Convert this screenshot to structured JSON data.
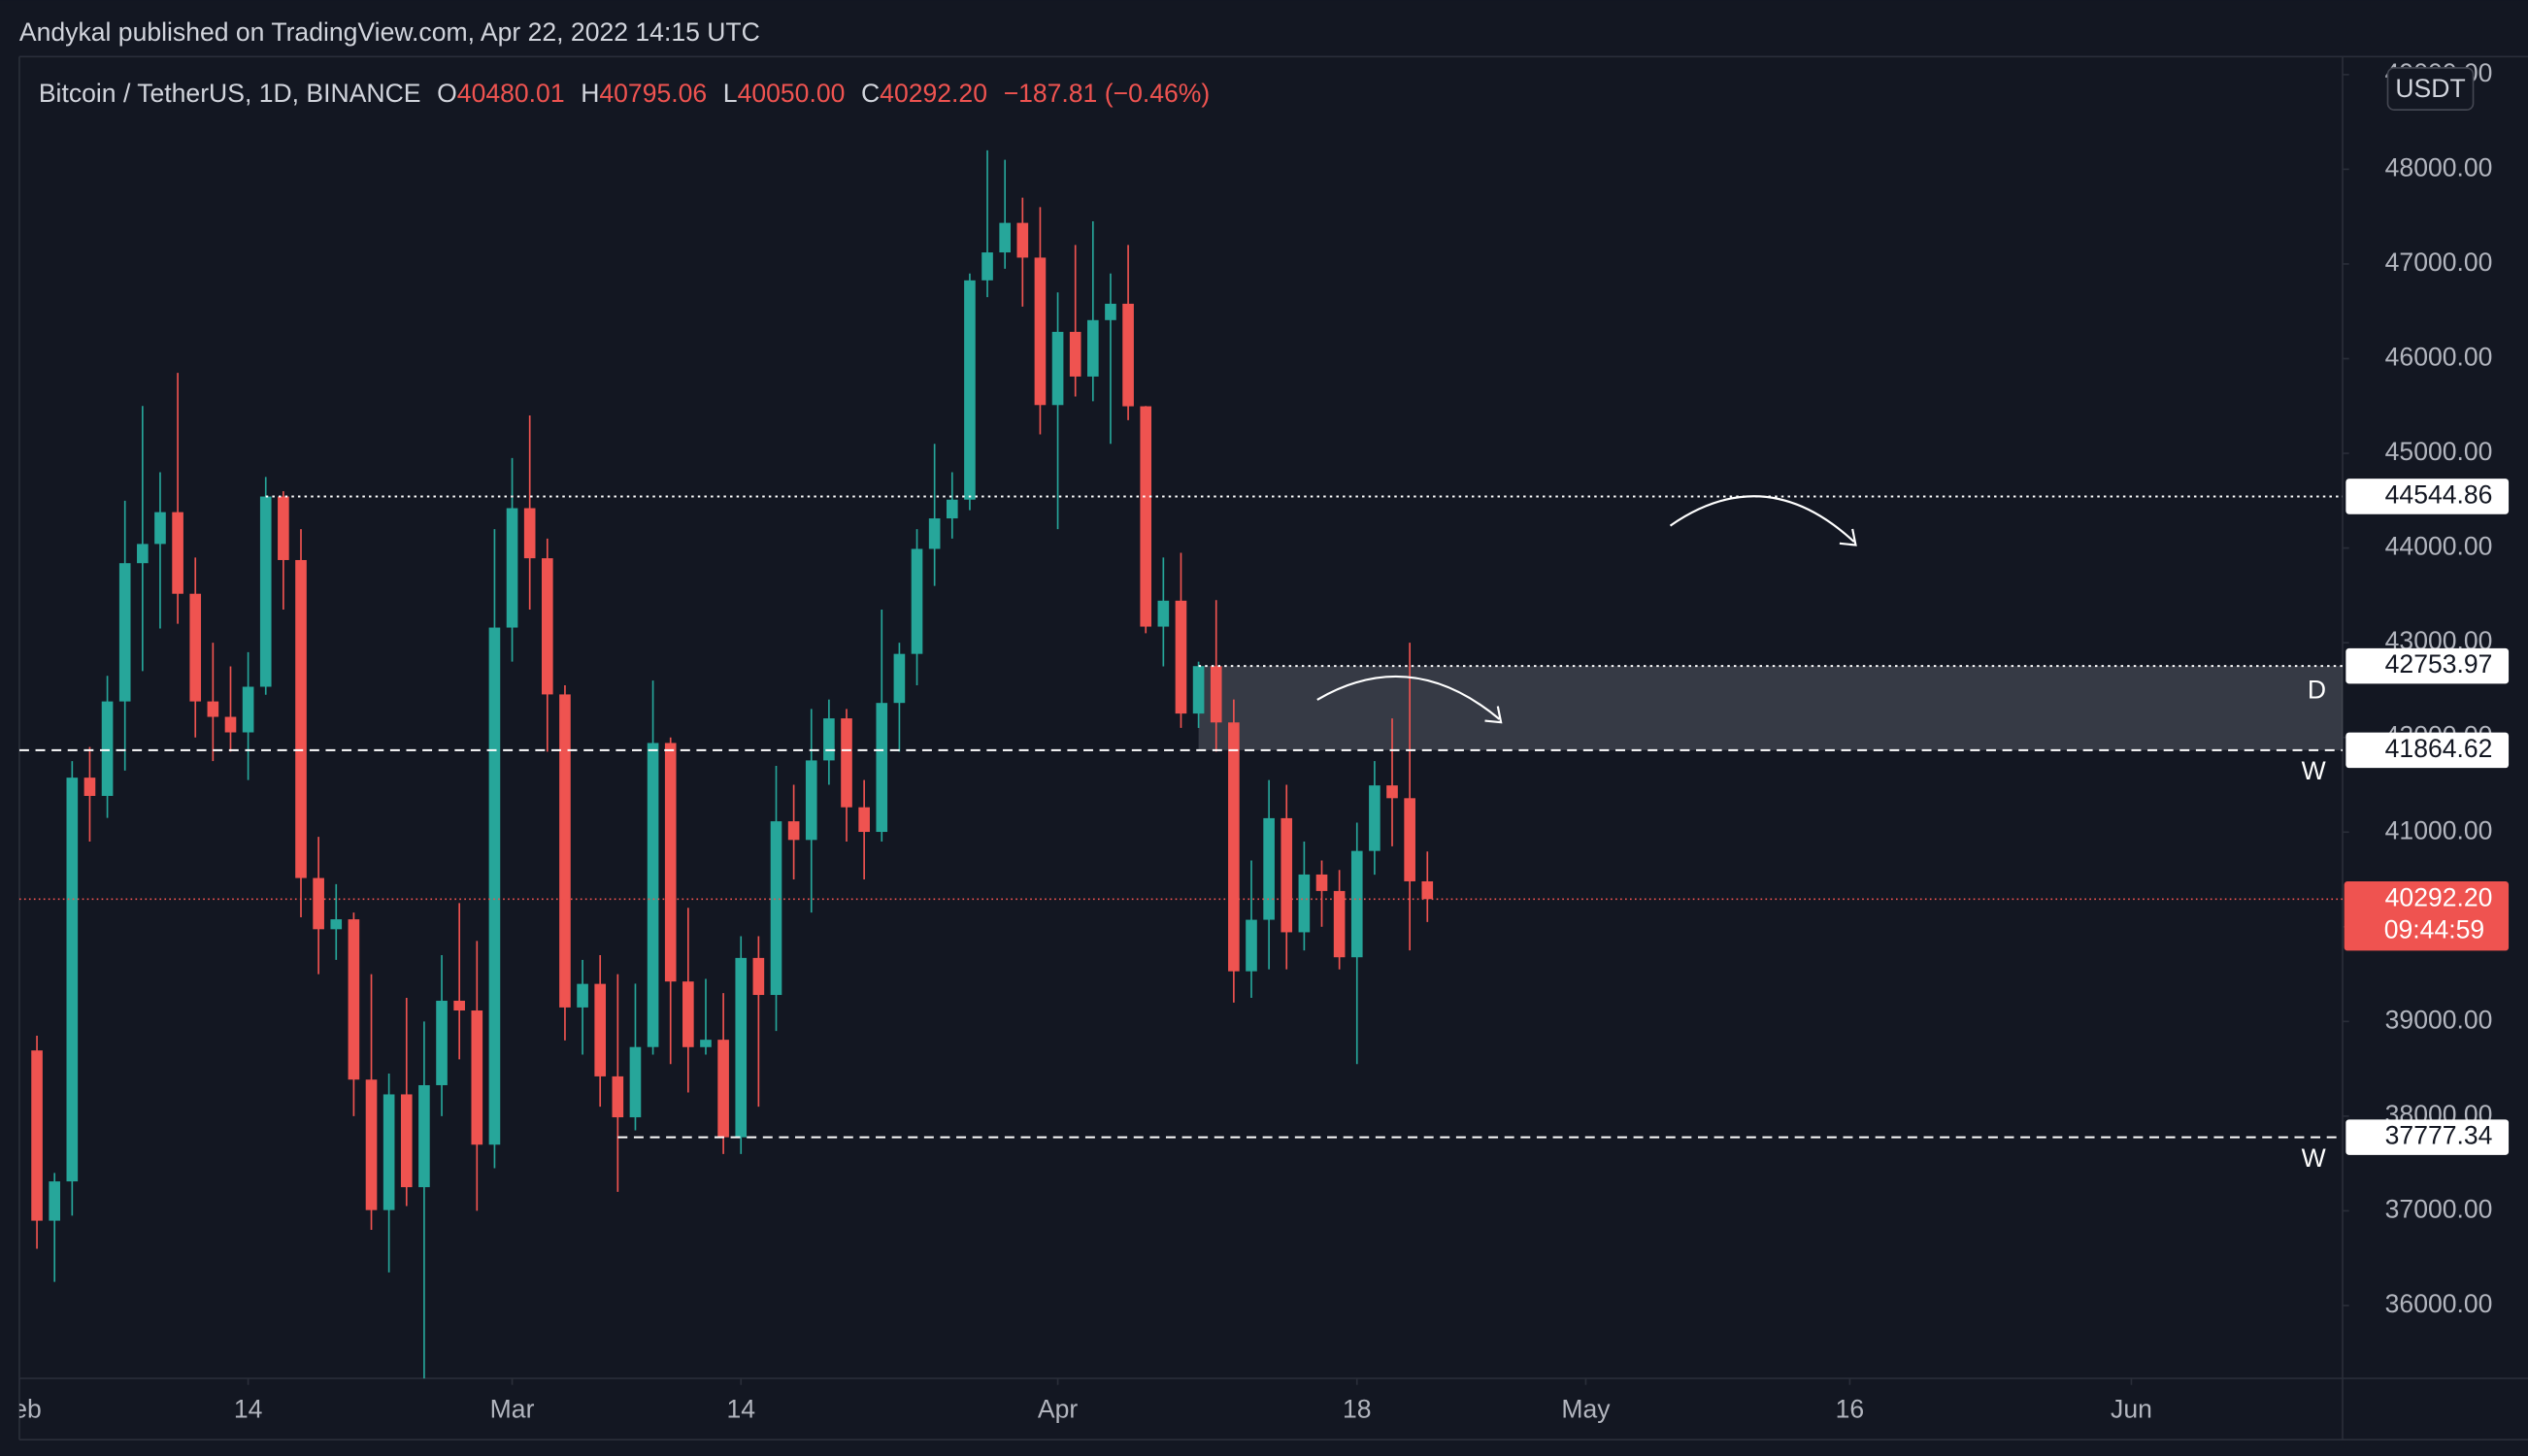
{
  "chart_data": {
    "type": "candlestick",
    "title": "Andykal published on TradingView.com, Apr 22, 2022 14:15 UTC",
    "symbol": "Bitcoin / TetherUS, 1D, BINANCE",
    "legend": [
      {
        "key": "O",
        "value": "40480.01"
      },
      {
        "key": "H",
        "value": "40795.06"
      },
      {
        "key": "L",
        "value": "40050.00"
      },
      {
        "key": "C",
        "value": "40292.20"
      }
    ],
    "change": "−187.81 (−0.46%)",
    "currency": "USDT",
    "up_color": "#26a69a",
    "down_color": "#ef5350",
    "x": [
      "2022-02-02",
      "2022-02-03",
      "2022-02-04",
      "2022-02-05",
      "2022-02-06",
      "2022-02-07",
      "2022-02-08",
      "2022-02-09",
      "2022-02-10",
      "2022-02-11",
      "2022-02-12",
      "2022-02-13",
      "2022-02-14",
      "2022-02-15",
      "2022-02-16",
      "2022-02-17",
      "2022-02-18",
      "2022-02-19",
      "2022-02-20",
      "2022-02-21",
      "2022-02-22",
      "2022-02-23",
      "2022-02-24",
      "2022-02-25",
      "2022-02-26",
      "2022-02-27",
      "2022-02-28",
      "2022-03-01",
      "2022-03-02",
      "2022-03-03",
      "2022-03-04",
      "2022-03-05",
      "2022-03-06",
      "2022-03-07",
      "2022-03-08",
      "2022-03-09",
      "2022-03-10",
      "2022-03-11",
      "2022-03-12",
      "2022-03-13",
      "2022-03-14",
      "2022-03-15",
      "2022-03-16",
      "2022-03-17",
      "2022-03-18",
      "2022-03-19",
      "2022-03-20",
      "2022-03-21",
      "2022-03-22",
      "2022-03-23",
      "2022-03-24",
      "2022-03-25",
      "2022-03-26",
      "2022-03-27",
      "2022-03-28",
      "2022-03-29",
      "2022-03-30",
      "2022-03-31",
      "2022-04-01",
      "2022-04-02",
      "2022-04-03",
      "2022-04-04",
      "2022-04-05",
      "2022-04-06",
      "2022-04-07",
      "2022-04-08",
      "2022-04-09",
      "2022-04-10",
      "2022-04-11",
      "2022-04-12",
      "2022-04-13",
      "2022-04-14",
      "2022-04-15",
      "2022-04-16",
      "2022-04-17",
      "2022-04-18",
      "2022-04-19",
      "2022-04-20",
      "2022-04-21",
      "2022-04-22"
    ],
    "open": [
      38694,
      36896,
      37311,
      41575,
      41382,
      42380,
      43840,
      44043,
      44379,
      43517,
      42380,
      42217,
      42053,
      42535,
      44544,
      43873,
      40515,
      39974,
      40079,
      38386,
      37008,
      38230,
      37250,
      38327,
      39219,
      39116,
      37699,
      43160,
      44421,
      43892,
      42454,
      39148,
      39397,
      38420,
      37988,
      38730,
      41941,
      39422,
      38729,
      38807,
      37777,
      39671,
      39280,
      41114,
      40917,
      41757,
      42201,
      41262,
      41002,
      42364,
      42882,
      43991,
      44313,
      44511,
      46827,
      47122,
      47434,
      47067,
      45510,
      46283,
      45811,
      46407,
      46580,
      45497,
      43170,
      43444,
      42252,
      42753,
      42158,
      39530,
      40074,
      41147,
      39942,
      40552,
      40378,
      39678,
      40801,
      41493,
      41358,
      40480
    ],
    "high": [
      38850,
      37400,
      41750,
      41900,
      42650,
      44500,
      45500,
      44800,
      45850,
      43900,
      43000,
      42750,
      42900,
      44750,
      44600,
      44200,
      40950,
      40450,
      40150,
      39500,
      38450,
      39250,
      39000,
      39700,
      40250,
      39850,
      44200,
      44950,
      45400,
      44100,
      42550,
      39650,
      39700,
      39500,
      39400,
      42600,
      42000,
      40200,
      39450,
      39300,
      39900,
      39900,
      41700,
      41500,
      42300,
      42400,
      42300,
      41550,
      43350,
      43000,
      44200,
      45100,
      44800,
      46900,
      48200,
      48100,
      47700,
      47600,
      46700,
      47200,
      47450,
      46900,
      47200,
      45500,
      43900,
      43950,
      42800,
      43450,
      42400,
      40700,
      41550,
      41500,
      40900,
      40700,
      40600,
      41100,
      41750,
      42200,
      43000,
      40795.06
    ],
    "low": [
      36600,
      36250,
      36950,
      40900,
      41150,
      41650,
      42700,
      43150,
      43200,
      42000,
      41750,
      41850,
      41550,
      42450,
      43350,
      40100,
      39500,
      39650,
      38000,
      36800,
      36350,
      37050,
      34400,
      38000,
      38600,
      37000,
      37450,
      42800,
      43350,
      41850,
      38800,
      38650,
      38100,
      37200,
      37850,
      38650,
      38550,
      38250,
      38650,
      37600,
      37600,
      38100,
      38900,
      40500,
      40150,
      41500,
      40900,
      40500,
      40900,
      41850,
      42550,
      43600,
      44100,
      44400,
      46650,
      46950,
      46550,
      45200,
      44200,
      45600,
      45550,
      45100,
      45350,
      43100,
      42750,
      42100,
      42100,
      41850,
      39200,
      39250,
      39550,
      39550,
      39750,
      40000,
      39550,
      38550,
      40550,
      40850,
      39750,
      40050
    ],
    "close": [
      36896,
      37311,
      41575,
      41382,
      42380,
      43840,
      44043,
      44379,
      43517,
      42380,
      42217,
      42053,
      42535,
      44544,
      43873,
      40515,
      39974,
      40079,
      38386,
      37008,
      38230,
      37250,
      38327,
      39219,
      39116,
      37699,
      43160,
      44421,
      43892,
      42454,
      39148,
      39397,
      38420,
      37988,
      38730,
      41941,
      39422,
      38729,
      38807,
      37777,
      39671,
      39280,
      41114,
      40917,
      41757,
      42201,
      41262,
      41002,
      42364,
      42882,
      43991,
      44313,
      44511,
      46827,
      47122,
      47434,
      47067,
      45510,
      46283,
      45811,
      46407,
      46580,
      45497,
      43170,
      43444,
      42252,
      42753,
      42158,
      39530,
      40074,
      41147,
      39942,
      40552,
      40378,
      39678,
      40801,
      41493,
      41358,
      40480,
      40292.2
    ],
    "xlim": [
      "2022-02-01",
      "2022-06-13"
    ],
    "xticks": [
      {
        "value": "2022-02-01",
        "label": "Feb"
      },
      {
        "value": "2022-02-14",
        "label": "14"
      },
      {
        "value": "2022-03-01",
        "label": "Mar"
      },
      {
        "value": "2022-03-14",
        "label": "14"
      },
      {
        "value": "2022-04-01",
        "label": "Apr"
      },
      {
        "value": "2022-04-18",
        "label": "18"
      },
      {
        "value": "2022-05-01",
        "label": "May"
      },
      {
        "value": "2022-05-16",
        "label": "16"
      },
      {
        "value": "2022-06-01",
        "label": "Jun"
      }
    ],
    "ylim": [
      35230,
      49190
    ],
    "yticks": [
      {
        "value": 36000,
        "label": "36000.00"
      },
      {
        "value": 37000,
        "label": "37000.00"
      },
      {
        "value": 38000,
        "label": "38000.00"
      },
      {
        "value": 39000,
        "label": "39000.00"
      },
      {
        "value": 40000,
        "label": "40000.00"
      },
      {
        "value": 41000,
        "label": "41000.00"
      },
      {
        "value": 42000,
        "label": "42000.00"
      },
      {
        "value": 43000,
        "label": "43000.00"
      },
      {
        "value": 44000,
        "label": "44000.00"
      },
      {
        "value": 45000,
        "label": "45000.00"
      },
      {
        "value": 46000,
        "label": "46000.00"
      },
      {
        "value": 47000,
        "label": "47000.00"
      },
      {
        "value": 48000,
        "label": "48000.00"
      },
      {
        "value": 49000,
        "label": "49000.00"
      }
    ],
    "zone": {
      "top": 42753.97,
      "bottom": 41864.62,
      "from": "2022-04-09",
      "note": "D"
    },
    "levels": [
      {
        "value": 44544.86,
        "label": "44544.86",
        "style": "dotted",
        "from": "2022-02-15"
      },
      {
        "value": 42753.97,
        "label": "42753.97",
        "style": "dotted",
        "from": "2022-04-09"
      },
      {
        "value": 41864.62,
        "label": "41864.62",
        "style": "dashed",
        "note": "W"
      },
      {
        "value": 37777.34,
        "label": "37777.34",
        "style": "dashed",
        "from": "2022-03-07",
        "note": "W"
      }
    ],
    "last_price": {
      "value": 40292.2,
      "label": "40292.20",
      "countdown": "09:44:59",
      "color": "#ef5350"
    }
  }
}
